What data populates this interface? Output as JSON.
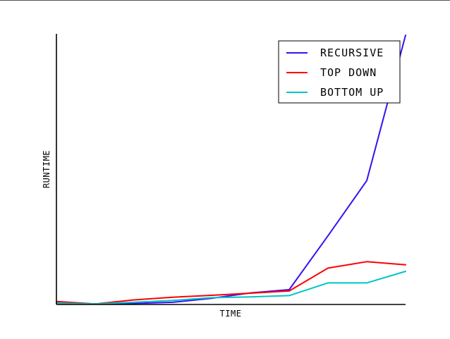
{
  "chart_data": {
    "type": "line",
    "title": "",
    "xlabel": "TIME",
    "ylabel": "RUNTIME",
    "xlim": [
      0,
      9
    ],
    "ylim": [
      0,
      100
    ],
    "x": [
      0,
      1,
      2,
      3,
      4,
      5,
      6,
      7,
      8,
      9
    ],
    "grid": false,
    "legend_position": "top-right",
    "series": [
      {
        "name": "RECURSIVE",
        "color": "#3a0ff2",
        "values": [
          0.5,
          0.2,
          0.4,
          0.8,
          2.3,
          4.3,
          5.5,
          25.5,
          46,
          100
        ]
      },
      {
        "name": "TOP DOWN",
        "color": "#ff0000",
        "values": [
          1.1,
          0.2,
          1.7,
          2.7,
          3.4,
          4.2,
          5.0,
          13.5,
          15.9,
          14.7
        ]
      },
      {
        "name": "BOTTOM UP",
        "color": "#00c5c5",
        "values": [
          0.5,
          0.2,
          0.8,
          1.5,
          2.5,
          2.8,
          3.3,
          8.0,
          8.0,
          12.3
        ]
      }
    ]
  }
}
